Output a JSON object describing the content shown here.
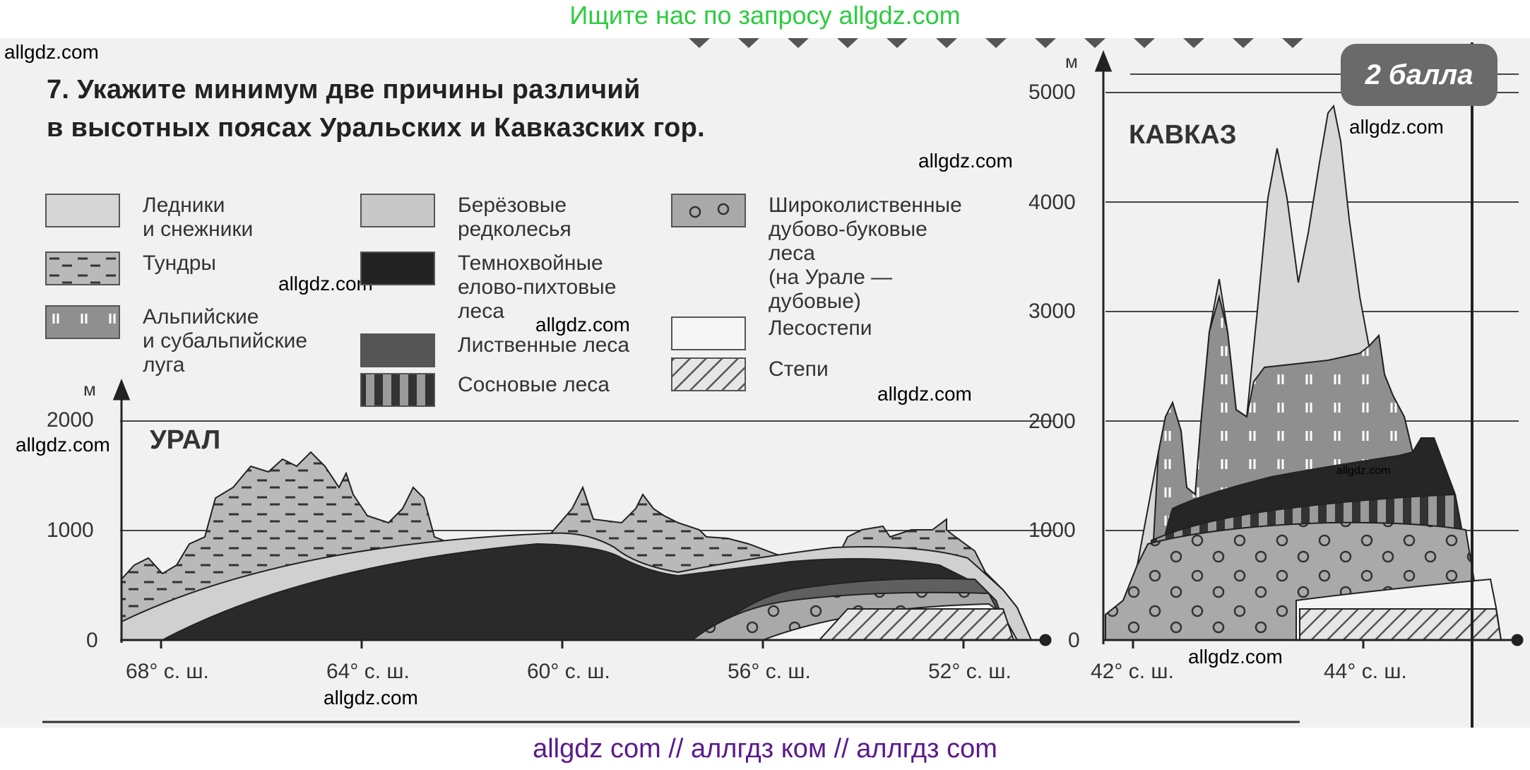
{
  "banner": {
    "text": "Ищите нас по запросу allgdz.com"
  },
  "footer": {
    "text": "allgdz com  //  аллгдз ком  //  аллгдз com"
  },
  "watermarks": {
    "w1": "allgdz.com",
    "w2": "allgdz.com",
    "w3": "allgdz.com",
    "w4": "allgdz.com",
    "w5": "allgdz.com",
    "w6": "allgdz.com",
    "w7": "allgdz.com",
    "w8": "allgdz.com",
    "w9": "allgdz.com",
    "w10": "allgdz.com"
  },
  "task": {
    "line1": "7. Укажите минимум две причины различий",
    "line2": "в высотных поясах Уральских и Кавказских гор."
  },
  "badge": {
    "label": "2 балла"
  },
  "legend": [
    {
      "label": "Ледники\nи снежники",
      "pattern": "glacier"
    },
    {
      "label": "Тундры",
      "pattern": "tundra"
    },
    {
      "label": "Альпийские\nи субальпийские\nлуга",
      "pattern": "alpine"
    },
    {
      "label": "Берёзовые\nредколесья",
      "pattern": "birch"
    },
    {
      "label": "Темнохвойные\nелово-пихтовые\nлеса",
      "pattern": "darkconifer"
    },
    {
      "label": "Лиственные леса",
      "pattern": "deciduous"
    },
    {
      "label": "Сосновые леса",
      "pattern": "pine"
    },
    {
      "label": "Широколиственные\nдубово-буковые\nлеса\n(на Урале —\nдубовые)",
      "pattern": "broadleaf"
    },
    {
      "label": "Лесостепи",
      "pattern": "foreststeppe"
    },
    {
      "label": "Степи",
      "pattern": "steppe"
    }
  ],
  "ural": {
    "title": "УРАЛ",
    "unit": "м",
    "y_ticks": [
      "2000",
      "1000",
      "0"
    ],
    "x_ticks": [
      "68° с. ш.",
      "64° с. ш.",
      "60° с. ш.",
      "56° с. ш.",
      "52° с. ш."
    ]
  },
  "caucasus": {
    "title": "КАВКАЗ",
    "unit": "м",
    "y_ticks": [
      "5000",
      "4000",
      "3000",
      "2000",
      "1000",
      "0"
    ],
    "x_ticks": [
      "42° с. ш.",
      "44° с. ш."
    ]
  },
  "colors": {
    "glacier": "#d6d6d6",
    "tundra": "#b9b9b9",
    "alpine": "#8f8f8f",
    "birch": "#c8c8c8",
    "darkconifer": "#232323",
    "deciduous": "#555555",
    "foreststeppe": "#f4f4f4",
    "broadleaf": "#a9a9a9"
  }
}
